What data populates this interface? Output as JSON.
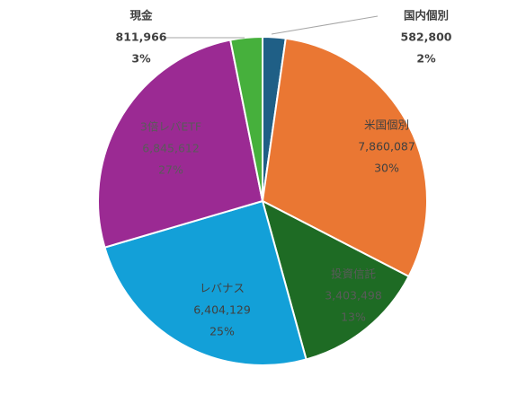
{
  "chart_data": {
    "type": "pie",
    "title": "",
    "legend": "none",
    "slices": [
      {
        "name": "国内個別",
        "value": 582800,
        "value_label": "582,800",
        "percent_label": "2%",
        "color": "#1f5f86"
      },
      {
        "name": "米国個別",
        "value": 7860087,
        "value_label": "7,860,087",
        "percent_label": "30%",
        "color": "#ea7733"
      },
      {
        "name": "投資信託",
        "value": 3403498,
        "value_label": "3,403,498",
        "percent_label": "13%",
        "color": "#1e6b24"
      },
      {
        "name": "レバナス",
        "value": 6404129,
        "value_label": "6,404,129",
        "percent_label": "25%",
        "color": "#13a0d8"
      },
      {
        "name": "3倍レバETF",
        "value": 6845612,
        "value_label": "6,845,612",
        "percent_label": "27%",
        "color": "#9b2a93"
      },
      {
        "name": "現金",
        "value": 811966,
        "value_label": "811,966",
        "percent_label": "3%",
        "color": "#46b03c"
      }
    ]
  }
}
